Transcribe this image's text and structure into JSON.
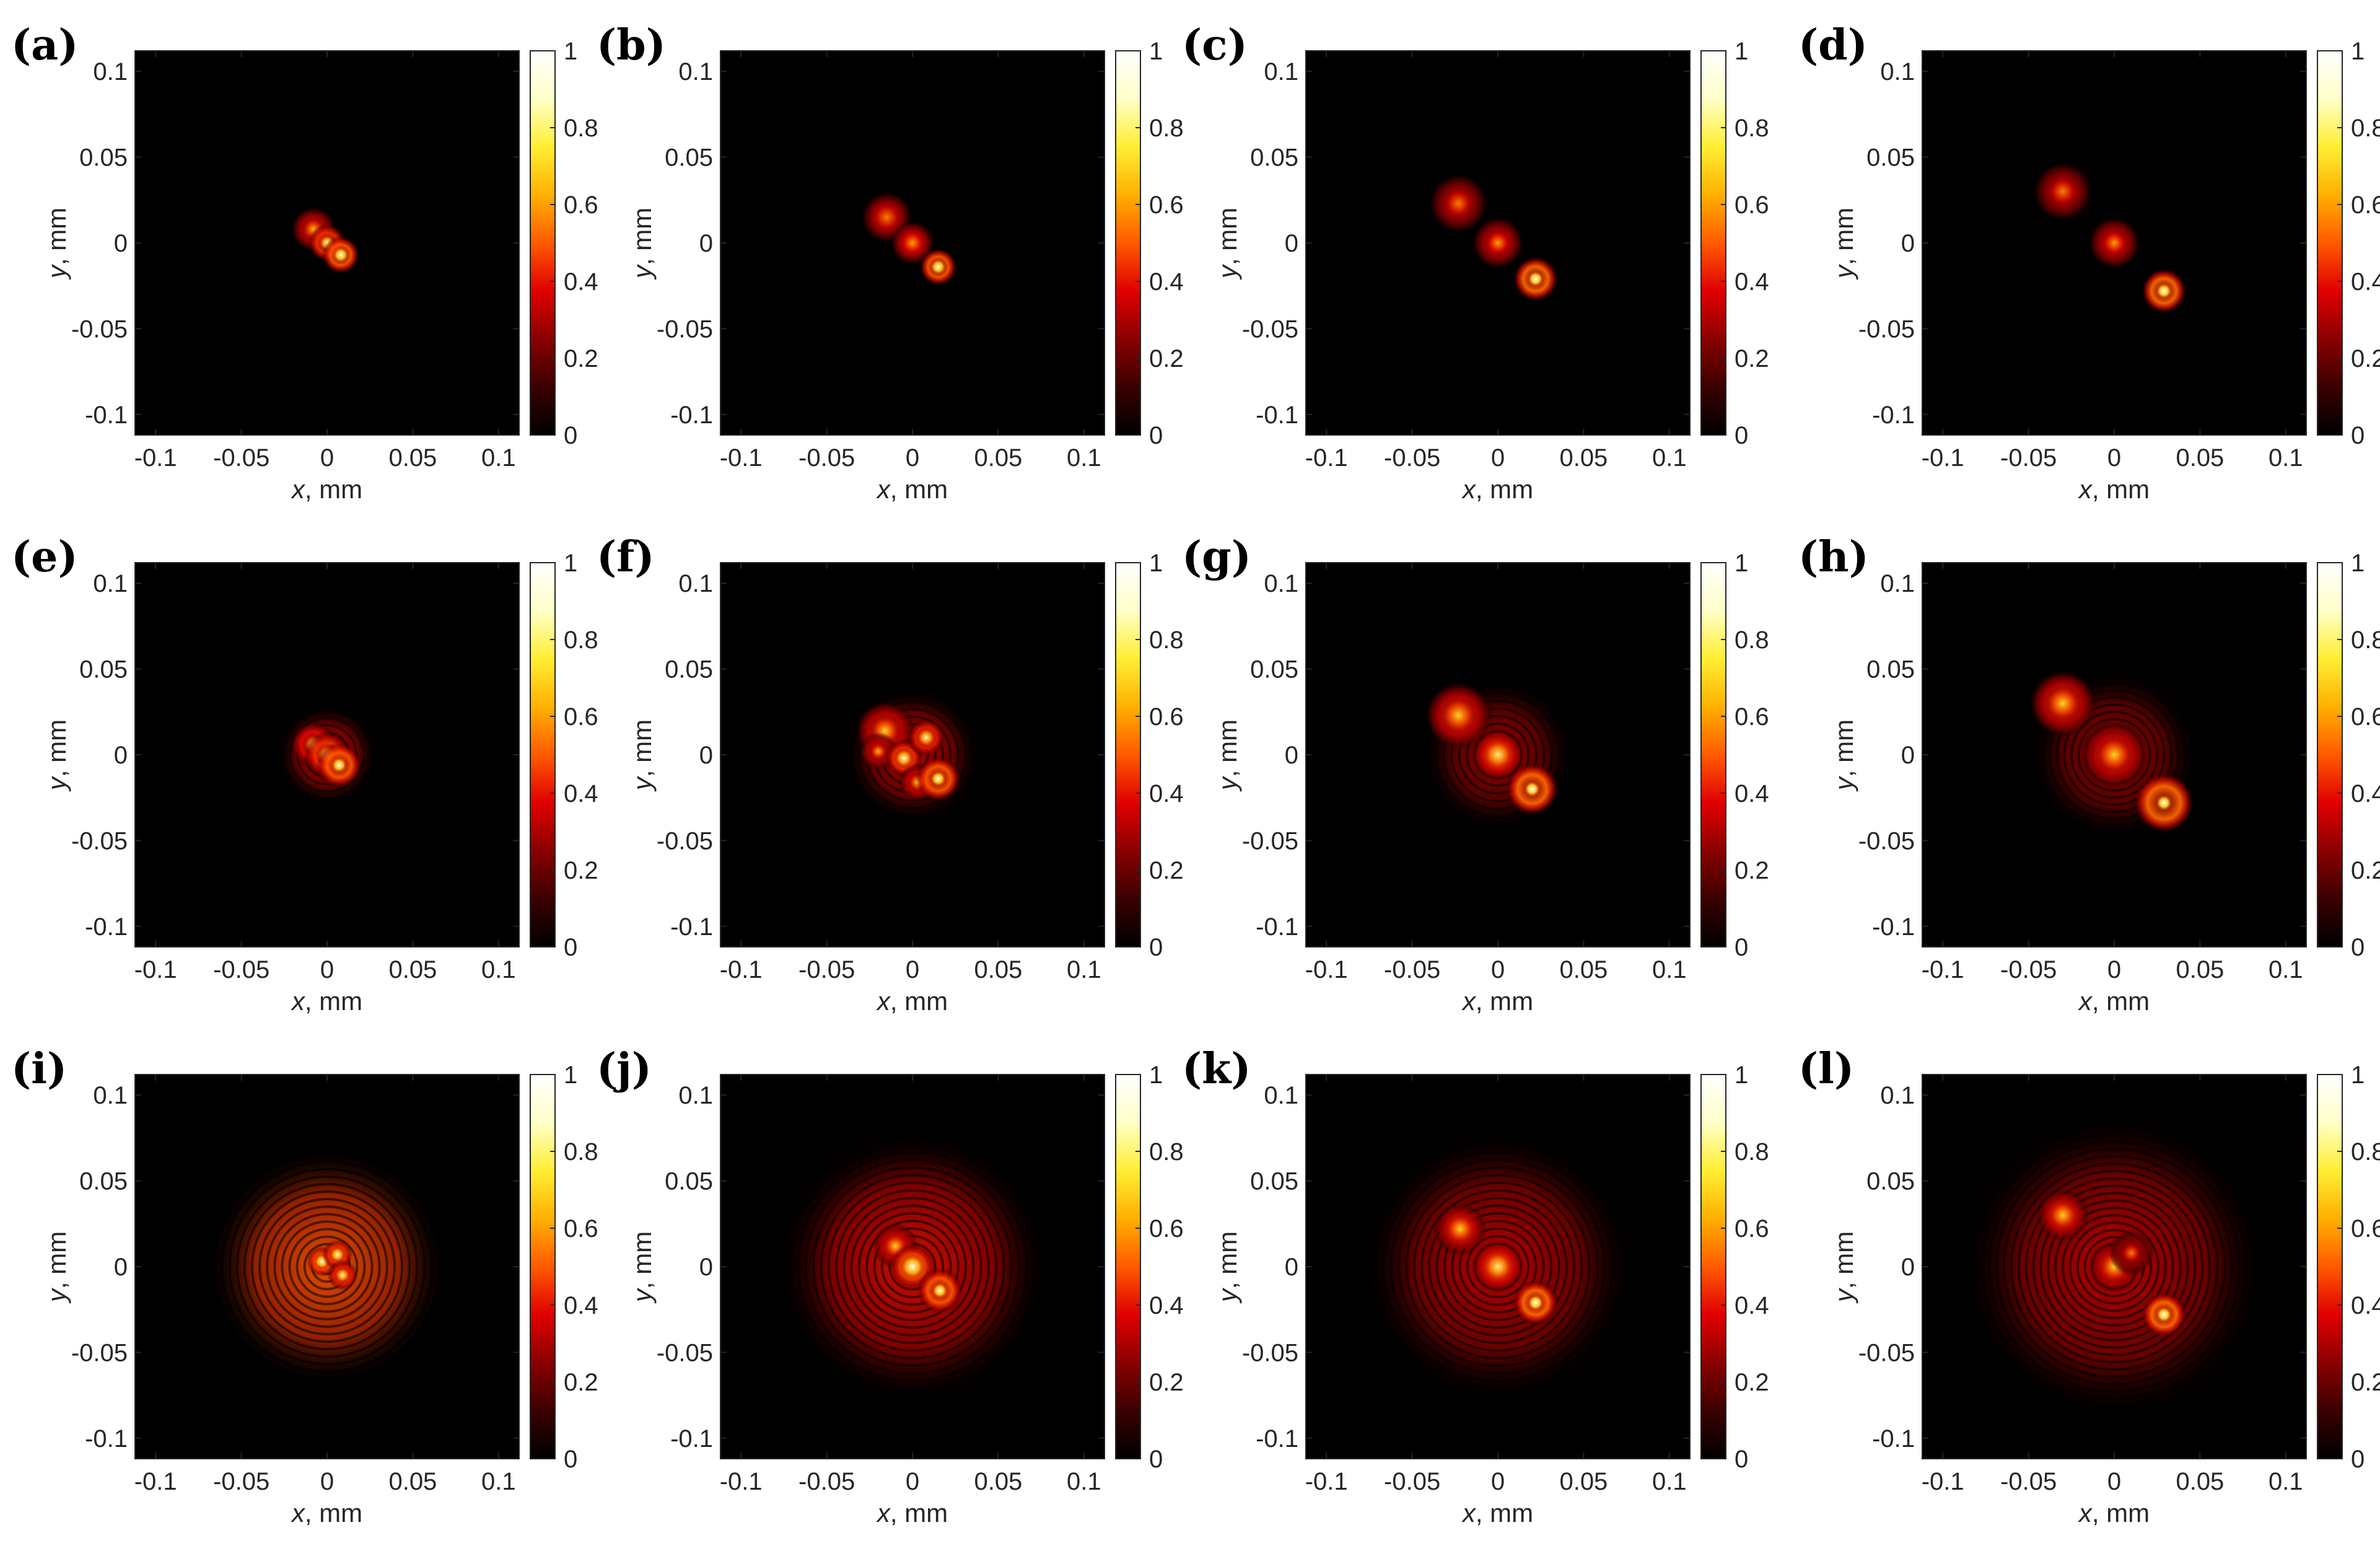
{
  "figure": {
    "rows": 3,
    "columns": 4,
    "colormap": "hot",
    "colormap_stops": [
      "#000000",
      "#3a0000",
      "#8a0000",
      "#e00000",
      "#ff5a00",
      "#ffb000",
      "#ffee33",
      "#ffffc8",
      "#ffffff"
    ]
  },
  "chart_data": [
    {
      "panel": "(a)",
      "type": "heatmap",
      "xlabel_var": "x",
      "xlabel_unit": ", mm",
      "ylabel_var": "y",
      "ylabel_unit": ", mm",
      "xticks": [
        "-0.1",
        "-0.05",
        "0",
        "0.05",
        "0.1"
      ],
      "yticks": [
        "0.1",
        "0.05",
        "0",
        "-0.05",
        "-0.1"
      ],
      "xlim": [
        -0.112,
        0.112
      ],
      "ylim": [
        -0.112,
        0.112
      ],
      "colorbar_ticks": [
        "1",
        "0.8",
        "0.6",
        "0.4",
        "0.2",
        "0"
      ],
      "clim": [
        0,
        1
      ],
      "spots": [
        {
          "x": -0.008,
          "y": 0.008,
          "intensity": 0.55,
          "width": 0.004,
          "ring": 0.006
        },
        {
          "x": 0,
          "y": 0,
          "intensity": 0.8,
          "width": 0.0025,
          "ring": 0.005
        },
        {
          "x": 0.008,
          "y": -0.007,
          "intensity": 0.9,
          "width": 0.0025,
          "ring": 0.005
        }
      ],
      "fringes": null
    },
    {
      "panel": "(b)",
      "type": "heatmap",
      "xlabel_var": "x",
      "xlabel_unit": ", mm",
      "ylabel_var": "y",
      "ylabel_unit": ", mm",
      "xticks": [
        "-0.1",
        "-0.05",
        "0",
        "0.05",
        "0.1"
      ],
      "yticks": [
        "0.1",
        "0.05",
        "0",
        "-0.05",
        "-0.1"
      ],
      "xlim": [
        -0.112,
        0.112
      ],
      "ylim": [
        -0.112,
        0.112
      ],
      "colorbar_ticks": [
        "1",
        "0.8",
        "0.6",
        "0.4",
        "0.2",
        "0"
      ],
      "clim": [
        0,
        1
      ],
      "spots": [
        {
          "x": -0.015,
          "y": 0.015,
          "intensity": 0.45,
          "width": 0.006,
          "ring": 0.007
        },
        {
          "x": 0,
          "y": 0,
          "intensity": 0.5,
          "width": 0.005,
          "ring": 0.006
        },
        {
          "x": 0.015,
          "y": -0.014,
          "intensity": 0.9,
          "width": 0.0025,
          "ring": 0.005
        }
      ],
      "fringes": null
    },
    {
      "panel": "(c)",
      "type": "heatmap",
      "xlabel_var": "x",
      "xlabel_unit": ", mm",
      "ylabel_var": "y",
      "ylabel_unit": ", mm",
      "xticks": [
        "-0.1",
        "-0.05",
        "0",
        "0.05",
        "0.1"
      ],
      "yticks": [
        "0.1",
        "0.05",
        "0",
        "-0.05",
        "-0.1"
      ],
      "xlim": [
        -0.112,
        0.112
      ],
      "ylim": [
        -0.112,
        0.112
      ],
      "colorbar_ticks": [
        "1",
        "0.8",
        "0.6",
        "0.4",
        "0.2",
        "0"
      ],
      "clim": [
        0,
        1
      ],
      "spots": [
        {
          "x": -0.023,
          "y": 0.023,
          "intensity": 0.45,
          "width": 0.006,
          "ring": 0.008
        },
        {
          "x": 0,
          "y": 0,
          "intensity": 0.5,
          "width": 0.005,
          "ring": 0.007
        },
        {
          "x": 0.022,
          "y": -0.021,
          "intensity": 0.95,
          "width": 0.0025,
          "ring": 0.006
        }
      ],
      "fringes": null
    },
    {
      "panel": "(d)",
      "type": "heatmap",
      "xlabel_var": "x",
      "xlabel_unit": ", mm",
      "ylabel_var": "y",
      "ylabel_unit": ", mm",
      "xticks": [
        "-0.1",
        "-0.05",
        "0",
        "0.05",
        "0.1"
      ],
      "yticks": [
        "0.1",
        "0.05",
        "0",
        "-0.05",
        "-0.1"
      ],
      "xlim": [
        -0.112,
        0.112
      ],
      "ylim": [
        -0.112,
        0.112
      ],
      "colorbar_ticks": [
        "1",
        "0.8",
        "0.6",
        "0.4",
        "0.2",
        "0"
      ],
      "clim": [
        0,
        1
      ],
      "spots": [
        {
          "x": -0.03,
          "y": 0.03,
          "intensity": 0.45,
          "width": 0.006,
          "ring": 0.008
        },
        {
          "x": 0,
          "y": 0,
          "intensity": 0.5,
          "width": 0.005,
          "ring": 0.007
        },
        {
          "x": 0.029,
          "y": -0.028,
          "intensity": 0.95,
          "width": 0.0025,
          "ring": 0.006
        }
      ],
      "fringes": null
    },
    {
      "panel": "(e)",
      "type": "heatmap",
      "xlabel_var": "x",
      "xlabel_unit": ", mm",
      "ylabel_var": "y",
      "ylabel_unit": ", mm",
      "xticks": [
        "-0.1",
        "-0.05",
        "0",
        "0.05",
        "0.1"
      ],
      "yticks": [
        "0.1",
        "0.05",
        "0",
        "-0.05",
        "-0.1"
      ],
      "xlim": [
        -0.112,
        0.112
      ],
      "ylim": [
        -0.112,
        0.112
      ],
      "colorbar_ticks": [
        "1",
        "0.8",
        "0.6",
        "0.4",
        "0.2",
        "0"
      ],
      "clim": [
        0,
        1
      ],
      "spots": [
        {
          "x": -0.008,
          "y": 0.006,
          "intensity": 0.7,
          "width": 0.003,
          "ring": 0.006
        },
        {
          "x": 0,
          "y": 0,
          "intensity": 0.8,
          "width": 0.003,
          "ring": 0.006
        },
        {
          "x": 0.007,
          "y": -0.006,
          "intensity": 0.9,
          "width": 0.0025,
          "ring": 0.006
        }
      ],
      "fringes": {
        "cx": 0,
        "cy": 0,
        "radius": 0.03,
        "intensity": 0.3
      }
    },
    {
      "panel": "(f)",
      "type": "heatmap",
      "xlabel_var": "x",
      "xlabel_unit": ", mm",
      "ylabel_var": "y",
      "ylabel_unit": ", mm",
      "xticks": [
        "-0.1",
        "-0.05",
        "0",
        "0.05",
        "0.1"
      ],
      "yticks": [
        "0.1",
        "0.05",
        "0",
        "-0.05",
        "-0.1"
      ],
      "xlim": [
        -0.112,
        0.112
      ],
      "ylim": [
        -0.112,
        0.112
      ],
      "colorbar_ticks": [
        "1",
        "0.8",
        "0.6",
        "0.4",
        "0.2",
        "0"
      ],
      "clim": [
        0,
        1
      ],
      "spots": [
        {
          "x": -0.016,
          "y": 0.014,
          "intensity": 0.6,
          "width": 0.005,
          "ring": 0.008
        },
        {
          "x": -0.02,
          "y": 0.002,
          "intensity": 0.55,
          "width": 0.003,
          "ring": 0.005
        },
        {
          "x": -0.005,
          "y": -0.002,
          "intensity": 0.8,
          "width": 0.003,
          "ring": 0.005
        },
        {
          "x": 0.008,
          "y": 0.01,
          "intensity": 0.75,
          "width": 0.003,
          "ring": 0.005
        },
        {
          "x": 0.003,
          "y": -0.016,
          "intensity": 0.6,
          "width": 0.003,
          "ring": 0.005
        },
        {
          "x": 0.015,
          "y": -0.014,
          "intensity": 0.9,
          "width": 0.0025,
          "ring": 0.006
        }
      ],
      "fringes": {
        "cx": 0,
        "cy": 0,
        "radius": 0.04,
        "intensity": 0.3
      }
    },
    {
      "panel": "(g)",
      "type": "heatmap",
      "xlabel_var": "x",
      "xlabel_unit": ", mm",
      "ylabel_var": "y",
      "ylabel_unit": ", mm",
      "xticks": [
        "-0.1",
        "-0.05",
        "0",
        "0.05",
        "0.1"
      ],
      "yticks": [
        "0.1",
        "0.05",
        "0",
        "-0.05",
        "-0.1"
      ],
      "xlim": [
        -0.112,
        0.112
      ],
      "ylim": [
        -0.112,
        0.112
      ],
      "colorbar_ticks": [
        "1",
        "0.8",
        "0.6",
        "0.4",
        "0.2",
        "0"
      ],
      "clim": [
        0,
        1
      ],
      "spots": [
        {
          "x": -0.023,
          "y": 0.023,
          "intensity": 0.6,
          "width": 0.006,
          "ring": 0.009
        },
        {
          "x": 0,
          "y": 0,
          "intensity": 0.7,
          "width": 0.005,
          "ring": 0.007
        },
        {
          "x": 0.02,
          "y": -0.02,
          "intensity": 0.95,
          "width": 0.0025,
          "ring": 0.007
        }
      ],
      "fringes": {
        "cx": 0,
        "cy": 0,
        "radius": 0.045,
        "intensity": 0.25
      }
    },
    {
      "panel": "(h)",
      "type": "heatmap",
      "xlabel_var": "x",
      "xlabel_unit": ", mm",
      "ylabel_var": "y",
      "ylabel_unit": ", mm",
      "xticks": [
        "-0.1",
        "-0.05",
        "0",
        "0.05",
        "0.1"
      ],
      "yticks": [
        "0.1",
        "0.05",
        "0",
        "-0.05",
        "-0.1"
      ],
      "xlim": [
        -0.112,
        0.112
      ],
      "ylim": [
        -0.112,
        0.112
      ],
      "colorbar_ticks": [
        "1",
        "0.8",
        "0.6",
        "0.4",
        "0.2",
        "0"
      ],
      "clim": [
        0,
        1
      ],
      "spots": [
        {
          "x": -0.03,
          "y": 0.03,
          "intensity": 0.6,
          "width": 0.006,
          "ring": 0.009
        },
        {
          "x": 0,
          "y": 0,
          "intensity": 0.6,
          "width": 0.006,
          "ring": 0.009
        },
        {
          "x": 0.029,
          "y": -0.028,
          "intensity": 0.95,
          "width": 0.0025,
          "ring": 0.008
        }
      ],
      "fringes": {
        "cx": 0,
        "cy": 0,
        "radius": 0.05,
        "intensity": 0.25
      }
    },
    {
      "panel": "(i)",
      "type": "heatmap",
      "xlabel_var": "x",
      "xlabel_unit": ", mm",
      "ylabel_var": "y",
      "ylabel_unit": ", mm",
      "xticks": [
        "-0.1",
        "-0.05",
        "0",
        "0.05",
        "0.1"
      ],
      "yticks": [
        "0.1",
        "0.05",
        "0",
        "-0.05",
        "-0.1"
      ],
      "xlim": [
        -0.112,
        0.112
      ],
      "ylim": [
        -0.112,
        0.112
      ],
      "colorbar_ticks": [
        "1",
        "0.8",
        "0.6",
        "0.4",
        "0.2",
        "0"
      ],
      "clim": [
        0,
        1
      ],
      "spots": [
        {
          "x": -0.003,
          "y": 0.003,
          "intensity": 0.85,
          "width": 0.0025,
          "ring": 0.004
        },
        {
          "x": 0.006,
          "y": 0.007,
          "intensity": 0.8,
          "width": 0.0025,
          "ring": 0.004
        },
        {
          "x": 0.009,
          "y": -0.005,
          "intensity": 0.75,
          "width": 0.0025,
          "ring": 0.004
        }
      ],
      "fringes": {
        "cx": 0,
        "cy": 0,
        "radius": 0.07,
        "intensity": 0.45
      }
    },
    {
      "panel": "(j)",
      "type": "heatmap",
      "xlabel_var": "x",
      "xlabel_unit": ", mm",
      "ylabel_var": "y",
      "ylabel_unit": ", mm",
      "xticks": [
        "-0.1",
        "-0.05",
        "0",
        "0.05",
        "0.1"
      ],
      "yticks": [
        "0.1",
        "0.05",
        "0",
        "-0.05",
        "-0.1"
      ],
      "xlim": [
        -0.112,
        0.112
      ],
      "ylim": [
        -0.112,
        0.112
      ],
      "colorbar_ticks": [
        "1",
        "0.8",
        "0.6",
        "0.4",
        "0.2",
        "0"
      ],
      "clim": [
        0,
        1
      ],
      "spots": [
        {
          "x": -0.01,
          "y": 0.012,
          "intensity": 0.6,
          "width": 0.004,
          "ring": 0.006
        },
        {
          "x": 0,
          "y": 0,
          "intensity": 0.85,
          "width": 0.004,
          "ring": 0.006
        },
        {
          "x": 0.016,
          "y": -0.014,
          "intensity": 0.9,
          "width": 0.0025,
          "ring": 0.006
        }
      ],
      "fringes": {
        "cx": 0,
        "cy": 0,
        "radius": 0.08,
        "intensity": 0.35
      }
    },
    {
      "panel": "(k)",
      "type": "heatmap",
      "xlabel_var": "x",
      "xlabel_unit": ", mm",
      "ylabel_var": "y",
      "ylabel_unit": ", mm",
      "xticks": [
        "-0.1",
        "-0.05",
        "0",
        "0.05",
        "0.1"
      ],
      "yticks": [
        "0.1",
        "0.05",
        "0",
        "-0.05",
        "-0.1"
      ],
      "xlim": [
        -0.112,
        0.112
      ],
      "ylim": [
        -0.112,
        0.112
      ],
      "colorbar_ticks": [
        "1",
        "0.8",
        "0.6",
        "0.4",
        "0.2",
        "0"
      ],
      "clim": [
        0,
        1
      ],
      "spots": [
        {
          "x": -0.022,
          "y": 0.022,
          "intensity": 0.6,
          "width": 0.005,
          "ring": 0.007
        },
        {
          "x": 0,
          "y": 0,
          "intensity": 0.7,
          "width": 0.005,
          "ring": 0.007
        },
        {
          "x": 0.022,
          "y": -0.021,
          "intensity": 0.95,
          "width": 0.0025,
          "ring": 0.006
        }
      ],
      "fringes": {
        "cx": 0,
        "cy": 0,
        "radius": 0.08,
        "intensity": 0.3
      }
    },
    {
      "panel": "(l)",
      "type": "heatmap",
      "xlabel_var": "x",
      "xlabel_unit": ", mm",
      "ylabel_var": "y",
      "ylabel_unit": ", mm",
      "xticks": [
        "-0.1",
        "-0.05",
        "0",
        "0.05",
        "0.1"
      ],
      "yticks": [
        "0.1",
        "0.05",
        "0",
        "-0.05",
        "-0.1"
      ],
      "xlim": [
        -0.112,
        0.112
      ],
      "ylim": [
        -0.112,
        0.112
      ],
      "colorbar_ticks": [
        "1",
        "0.8",
        "0.6",
        "0.4",
        "0.2",
        "0"
      ],
      "clim": [
        0,
        1
      ],
      "spots": [
        {
          "x": -0.03,
          "y": 0.03,
          "intensity": 0.6,
          "width": 0.005,
          "ring": 0.007
        },
        {
          "x": 0,
          "y": 0,
          "intensity": 0.6,
          "width": 0.005,
          "ring": 0.007
        },
        {
          "x": 0.01,
          "y": 0.008,
          "intensity": 0.45,
          "width": 0.004,
          "ring": 0.006
        },
        {
          "x": 0.029,
          "y": -0.028,
          "intensity": 0.95,
          "width": 0.0025,
          "ring": 0.006
        }
      ],
      "fringes": {
        "cx": 0,
        "cy": 0,
        "radius": 0.09,
        "intensity": 0.3
      }
    }
  ]
}
